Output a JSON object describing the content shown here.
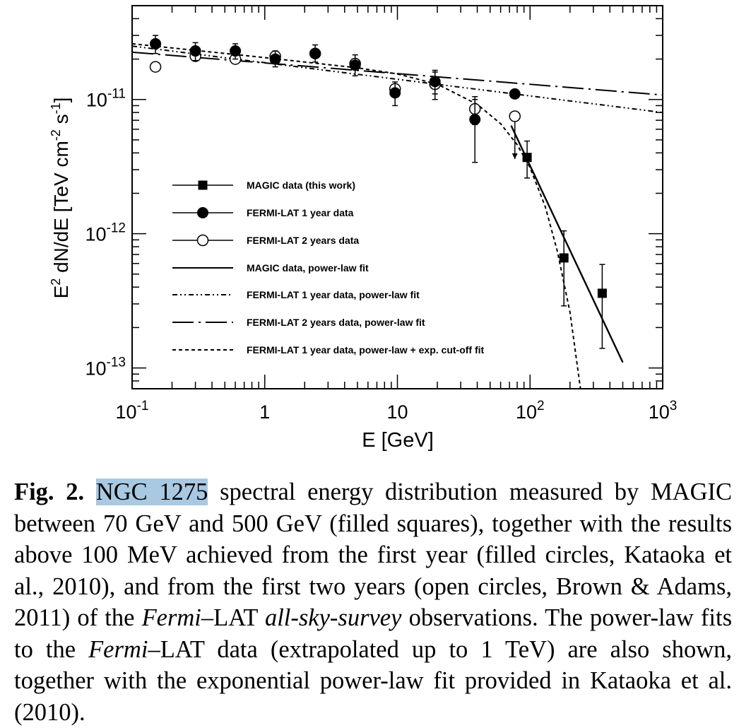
{
  "chart_data": {
    "type": "scatter",
    "xscale": "log",
    "yscale": "log",
    "xlim": [
      0.1,
      1000
    ],
    "ylim": [
      7e-14,
      5e-11
    ],
    "xlabel": "E [GeV]",
    "ylabel_parts": {
      "E": "E",
      "exp1": "2",
      "mid": " dN/dE [TeV cm",
      "exp2": "-2",
      "s": " s",
      "exp3": "-1",
      "end": "]"
    },
    "x_ticks": [
      {
        "value": 0.1,
        "base": "10",
        "exp": "-1"
      },
      {
        "value": 1,
        "base": "1",
        "exp": ""
      },
      {
        "value": 10,
        "base": "10",
        "exp": ""
      },
      {
        "value": 100,
        "base": "10",
        "exp": "2"
      },
      {
        "value": 1000,
        "base": "10",
        "exp": "3"
      }
    ],
    "y_ticks": [
      {
        "value": 1e-11,
        "base": "10",
        "exp": "-11"
      },
      {
        "value": 1e-12,
        "base": "10",
        "exp": "-12"
      },
      {
        "value": 1e-13,
        "base": "10",
        "exp": "-13"
      }
    ],
    "series": [
      {
        "name": "MAGIC data (this work)",
        "marker": "square-filled",
        "points": [
          {
            "x": 95,
            "y": 3.7e-12,
            "ylo": 2.6e-12,
            "yhi": 4.9e-12
          },
          {
            "x": 180,
            "y": 6.6e-13,
            "ylo": 2.9e-13,
            "yhi": 1.05e-12
          },
          {
            "x": 350,
            "y": 3.6e-13,
            "ylo": 1.4e-13,
            "yhi": 5.9e-13
          }
        ]
      },
      {
        "name": "FERMI-LAT 1 year data",
        "marker": "circle-filled",
        "points": [
          {
            "x": 0.15,
            "y": 2.6e-11,
            "ylo": 2.2e-11,
            "yhi": 3e-11
          },
          {
            "x": 0.3,
            "y": 2.3e-11,
            "ylo": 1.95e-11,
            "yhi": 2.65e-11
          },
          {
            "x": 0.6,
            "y": 2.3e-11,
            "ylo": 2e-11,
            "yhi": 2.6e-11
          },
          {
            "x": 1.2,
            "y": 2e-11,
            "ylo": 1.75e-11,
            "yhi": 2.3e-11
          },
          {
            "x": 2.4,
            "y": 2.2e-11,
            "ylo": 1.9e-11,
            "yhi": 2.55e-11
          },
          {
            "x": 4.8,
            "y": 1.8e-11,
            "ylo": 1.5e-11,
            "yhi": 2.15e-11
          },
          {
            "x": 9.6,
            "y": 1.12e-11,
            "ylo": 9e-12,
            "yhi": 1.35e-11
          },
          {
            "x": 19.2,
            "y": 1.36e-11,
            "ylo": 1.1e-11,
            "yhi": 1.65e-11
          },
          {
            "x": 38.4,
            "y": 7.1e-12,
            "ylo": 3.4e-12,
            "yhi": 1e-11
          },
          {
            "x": 76.8,
            "y": 1.1e-11,
            "ylo": null,
            "yhi": null
          }
        ]
      },
      {
        "name": "FERMI-LAT 2 years data",
        "marker": "circle-open",
        "points": [
          {
            "x": 0.15,
            "y": 1.75e-11
          },
          {
            "x": 0.3,
            "y": 2.1e-11
          },
          {
            "x": 0.6,
            "y": 2e-11
          },
          {
            "x": 1.2,
            "y": 2.1e-11
          },
          {
            "x": 2.4,
            "y": 2.2e-11
          },
          {
            "x": 4.8,
            "y": 1.85e-11
          },
          {
            "x": 9.6,
            "y": 1.2e-11
          },
          {
            "x": 19.2,
            "y": 1.3e-11,
            "ylo": 1e-11,
            "yhi": 1.6e-11
          },
          {
            "x": 38.4,
            "y": 8.5e-12,
            "ylo": 6.5e-12,
            "yhi": 1.05e-11
          },
          {
            "x": 76.8,
            "y": 7.5e-12,
            "upper_limit": true,
            "arrow_to": 3.6e-12
          }
        ]
      }
    ],
    "fits": [
      {
        "name": "MAGIC data, power-law fit",
        "style": "solid",
        "x": [
          72,
          500
        ],
        "y": [
          6.4e-12,
          1.1e-13
        ]
      },
      {
        "name": "FERMI-LAT 1 year data, power-law fit",
        "style": "dash-dot-dot",
        "x": [
          0.1,
          1000
        ],
        "y": [
          2.5e-11,
          8e-12
        ]
      },
      {
        "name": "FERMI-LAT 2 years data, power-law fit",
        "style": "long-dash-dot",
        "x": [
          0.1,
          1000
        ],
        "y": [
          2.25e-11,
          1.08e-11
        ]
      },
      {
        "name": "FERMI-LAT 1 year data, power-law + exp. cut-off fit",
        "style": "short-dash",
        "x": [
          0.1,
          1,
          5,
          10,
          20,
          40,
          60,
          80,
          100,
          130,
          160,
          200,
          240
        ],
        "y": [
          2.6e-11,
          2.05e-11,
          1.72e-11,
          1.55e-11,
          1.3e-11,
          9.2e-12,
          6.6e-12,
          4.6e-12,
          3.1e-12,
          1.6e-12,
          7.5e-13,
          2.6e-13,
          7e-14
        ]
      }
    ],
    "legend_placement": "lower-left"
  },
  "legend": {
    "items": [
      {
        "label": "MAGIC data (this work)",
        "symbol": "square-filled"
      },
      {
        "label": "FERMI-LAT 1 year data",
        "symbol": "circle-filled"
      },
      {
        "label": "FERMI-LAT 2 years data",
        "symbol": "circle-open"
      },
      {
        "label": "MAGIC data, power-law fit",
        "symbol": "solid"
      },
      {
        "label": "FERMI-LAT 1 year data, power-law fit",
        "symbol": "dash-dot-dot"
      },
      {
        "label": "FERMI-LAT 2 years data, power-law fit",
        "symbol": "long-dash-dot"
      },
      {
        "label": "FERMI-LAT 1 year data, power-law + exp. cut-off fit",
        "symbol": "short-dash"
      }
    ]
  },
  "caption": {
    "fig_label": "Fig. 2.",
    "object": "NGC 1275",
    "part1": " spectral energy distribution measured by MAGIC between 70 GeV and 500 GeV (filled squares), together with the results above 100 MeV achieved from the first year (filled circles, Kataoka et al., 2010), and from the first two years (open circles, Brown & Adams, 2011) of the ",
    "fermi1": "Fermi",
    "part2": "–LAT ",
    "allsky": "all-sky-survey",
    "part3": " observations. The power-law fits to the ",
    "fermi2": "Fermi",
    "part4": "–LAT data (extrapolated up to 1 TeV) are also shown, together with the exponential power-law fit provided in Kataoka et al. (2010)."
  },
  "colors": {
    "ink": "#000000",
    "highlight": "#a9c9e2"
  }
}
